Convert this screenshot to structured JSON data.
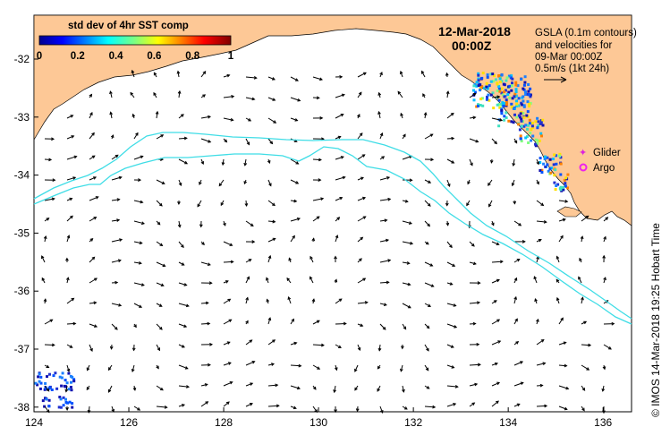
{
  "map": {
    "date_line1": "12-Mar-2018",
    "date_line2": "00:00Z",
    "info_line1": "GSLA (0.1m contours)",
    "info_line2": "and velocities for",
    "info_line3": "09-Mar 00:00Z",
    "info_line4": "0.5m/s (1kt 24h)",
    "colorbar_title": "std dev of 4hr SST comp",
    "colorbar_ticks": [
      "0",
      "0.2",
      "0.4",
      "0.6",
      "0.8",
      "1"
    ],
    "x_ticks": [
      "124",
      "126",
      "128",
      "130",
      "132",
      "134",
      "136"
    ],
    "y_ticks": [
      "-32",
      "-33",
      "-34",
      "-35",
      "-36",
      "-37",
      "-38"
    ],
    "legend_glider": "Glider",
    "legend_argo": "Argo",
    "credit": "© IMOS 14-Mar-2018 19:25 Hobart Time"
  },
  "colors": {
    "land": "#fdc896",
    "contour": "#3fdde6",
    "glider": "#dd22dd",
    "argo": "#ee22ee"
  }
}
